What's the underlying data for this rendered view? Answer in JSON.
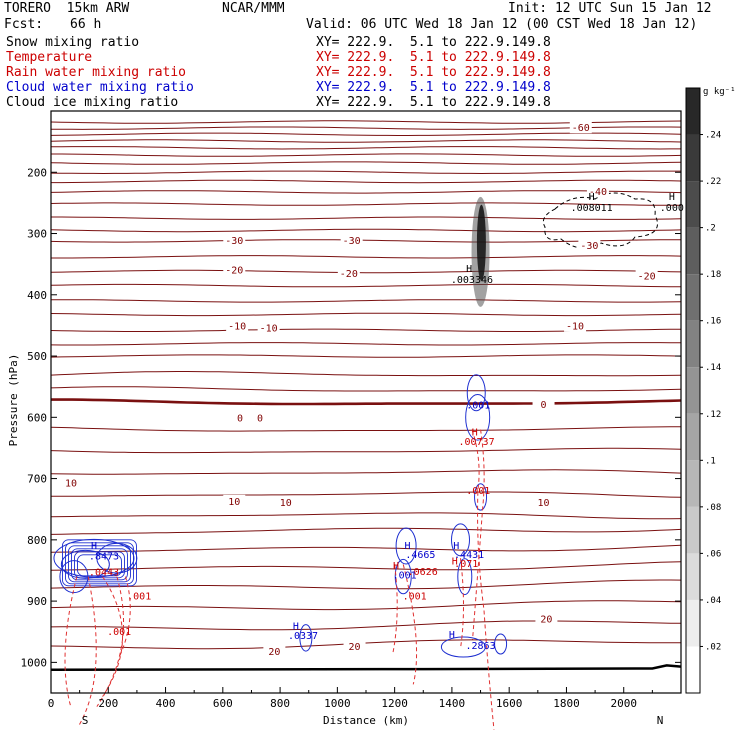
{
  "header": {
    "model": "TORERO  15km ARW",
    "center": "NCAR/MMM",
    "init": "Init: 12 UTC Sun 15 Jan 12",
    "fcst_label": "Fcst:",
    "fcst_value": "66 h",
    "valid": "Valid: 06 UTC Wed 18 Jan 12 (00 CST Wed 18 Jan 12)"
  },
  "fields": [
    {
      "name": "Snow mixing ratio",
      "xy": "XY= 222.9.  5.1 to 222.9.149.8",
      "color": "#000000"
    },
    {
      "name": "Temperature",
      "xy": "XY= 222.9.  5.1 to 222.9.149.8",
      "color": "#cc0000"
    },
    {
      "name": "Rain water mixing ratio",
      "xy": "XY= 222.9.  5.1 to 222.9.149.8",
      "color": "#cc0000"
    },
    {
      "name": "Cloud water mixing ratio",
      "xy": "XY= 222.9.  5.1 to 222.9.149.8",
      "color": "#0000cc"
    },
    {
      "name": "Cloud ice mixing ratio",
      "xy": "XY= 222.9.  5.1 to 222.9.149.8",
      "color": "#000000"
    }
  ],
  "chart_data": {
    "type": "line",
    "ylabel": "Pressure (hPa)",
    "xlabel": "Distance (km)",
    "xlim": [
      0,
      2200
    ],
    "ylim": [
      1050,
      100
    ],
    "x_ticks": [
      0,
      200,
      400,
      600,
      800,
      1000,
      1200,
      1400,
      1600,
      1800,
      2000
    ],
    "y_ticks": [
      200,
      300,
      400,
      500,
      600,
      700,
      800,
      900,
      1000
    ],
    "x_end_labels": {
      "left": "S",
      "right": "N"
    },
    "temperature_isotherms": [
      {
        "label": "-60",
        "p": 128
      },
      {
        "label": "-40",
        "p": 232
      },
      {
        "label": "-30",
        "p": 312
      },
      {
        "label": "-20",
        "p": 362
      },
      {
        "label": "-10",
        "p": 458
      },
      {
        "label": "0",
        "p": 576
      },
      {
        "label": "10",
        "p": 726
      },
      {
        "label": "20",
        "p": 913
      }
    ],
    "temperature_labels": [
      {
        "text": "-60",
        "x": 1850,
        "p": 128
      },
      {
        "text": "-40",
        "x": 1910,
        "p": 232
      },
      {
        "text": "-30",
        "x": 640,
        "p": 312
      },
      {
        "text": "-30",
        "x": 1050,
        "p": 312
      },
      {
        "text": "-30",
        "x": 1880,
        "p": 320
      },
      {
        "text": "-20",
        "x": 640,
        "p": 360
      },
      {
        "text": "-20",
        "x": 1040,
        "p": 366
      },
      {
        "text": "-20",
        "x": 2080,
        "p": 370
      },
      {
        "text": "-10",
        "x": 650,
        "p": 452
      },
      {
        "text": "-10",
        "x": 760,
        "p": 455
      },
      {
        "text": "-10",
        "x": 1830,
        "p": 452
      },
      {
        "text": "0",
        "x": 660,
        "p": 602
      },
      {
        "text": "0",
        "x": 730,
        "p": 602
      },
      {
        "text": "0",
        "x": 1720,
        "p": 580
      },
      {
        "text": "10",
        "x": 70,
        "p": 708
      },
      {
        "text": "10",
        "x": 640,
        "p": 738
      },
      {
        "text": "10",
        "x": 820,
        "p": 740
      },
      {
        "text": "10",
        "x": 1720,
        "p": 740
      },
      {
        "text": "20",
        "x": 1730,
        "p": 930
      },
      {
        "text": "20",
        "x": 1060,
        "p": 975
      },
      {
        "text": "20",
        "x": 780,
        "p": 983
      }
    ],
    "maxima": [
      {
        "field": "Snow mixing ratio",
        "text": ".008011",
        "x": 1888,
        "p": 263,
        "color": "#000000"
      },
      {
        "field": "Snow mixing ratio",
        "text": ".000",
        "x": 2168,
        "p": 263,
        "color": "#000000"
      },
      {
        "field": "Cloud ice mixing ratio",
        "text": ".003346",
        "x": 1470,
        "p": 381,
        "color": "#000000"
      },
      {
        "field": "Cloud water mixing ratio",
        "text": ".001",
        "x": 1492,
        "p": 586,
        "color": "#0000cc"
      },
      {
        "field": "Rain water mixing ratio",
        "text": ".00737",
        "x": 1486,
        "p": 645,
        "color": "#cc0000"
      },
      {
        "field": "Rain water mixing ratio",
        "text": ".001",
        "x": 1492,
        "p": 725,
        "color": "#cc0000"
      },
      {
        "field": "Cloud water mixing ratio",
        "text": ".8473",
        "x": 185,
        "p": 832,
        "color": "#0000cc"
      },
      {
        "field": "Rain water mixing ratio",
        "text": ".0443",
        "x": 185,
        "p": 858,
        "color": "#cc0000"
      },
      {
        "field": "Rain water mixing ratio",
        "text": ".001",
        "x": 308,
        "p": 897,
        "color": "#cc0000"
      },
      {
        "field": "Rain water mixing ratio",
        "text": ".001",
        "x": 238,
        "p": 955,
        "color": "#cc0000"
      },
      {
        "field": "Cloud water mixing ratio",
        "text": ".4665",
        "x": 1290,
        "p": 830,
        "color": "#0000cc"
      },
      {
        "field": "Rain water mixing ratio",
        "text": ".0626",
        "x": 1298,
        "p": 857,
        "color": "#cc0000"
      },
      {
        "field": "Cloud water mixing ratio",
        "text": ".001",
        "x": 1235,
        "p": 863,
        "color": "#0000cc"
      },
      {
        "field": "Rain water mixing ratio",
        "text": ".001",
        "x": 1270,
        "p": 897,
        "color": "#cc0000"
      },
      {
        "field": "Cloud water mixing ratio",
        "text": ".4431",
        "x": 1460,
        "p": 830,
        "color": "#0000cc"
      },
      {
        "field": "Rain water mixing ratio",
        "text": ".071",
        "x": 1450,
        "p": 844,
        "color": "#cc0000"
      },
      {
        "field": "Cloud water mixing ratio",
        "text": ".0337",
        "x": 880,
        "p": 962,
        "color": "#0000cc"
      },
      {
        "field": "Cloud water mixing ratio",
        "text": ".2863",
        "x": 1500,
        "p": 978,
        "color": "#0000cc"
      }
    ],
    "max_markers": [
      {
        "text": "H",
        "x": 1888,
        "p": 245,
        "color": "#000000"
      },
      {
        "text": "H",
        "x": 2168,
        "p": 245,
        "color": "#000000"
      },
      {
        "text": "H",
        "x": 1460,
        "p": 363,
        "color": "#000000"
      },
      {
        "text": "H",
        "x": 1480,
        "p": 630,
        "color": "#cc0000"
      },
      {
        "text": "H",
        "x": 150,
        "p": 815,
        "color": "#0000cc"
      },
      {
        "text": "H",
        "x": 1245,
        "p": 815,
        "color": "#0000cc"
      },
      {
        "text": "H",
        "x": 1205,
        "p": 848,
        "color": "#cc0000"
      },
      {
        "text": "H",
        "x": 1415,
        "p": 815,
        "color": "#0000cc"
      },
      {
        "text": "H",
        "x": 1410,
        "p": 840,
        "color": "#cc0000"
      },
      {
        "text": "H",
        "x": 855,
        "p": 946,
        "color": "#0000cc"
      },
      {
        "text": "H",
        "x": 1400,
        "p": 960,
        "color": "#0000cc"
      }
    ],
    "colorbar": {
      "unit": "g kg⁻¹",
      "ticks": [
        ".02",
        ".04",
        ".06",
        ".08",
        ".1",
        ".12",
        ".14",
        ".16",
        ".18",
        ".2",
        ".22",
        ".24"
      ],
      "range": [
        0,
        0.26
      ]
    }
  }
}
